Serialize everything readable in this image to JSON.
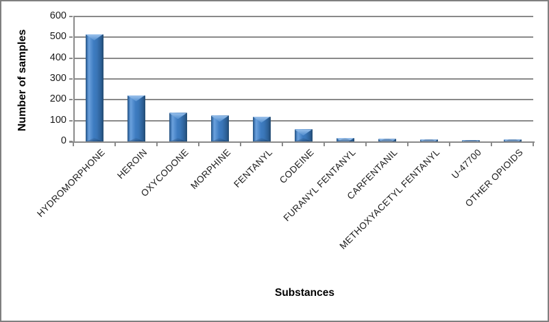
{
  "frame": {
    "background": "#ffffff",
    "border_color": "#7f7f7f"
  },
  "chart_data": {
    "type": "bar",
    "title": "",
    "ylabel": "Number of samples",
    "xlabel": "Substances",
    "categories": [
      "HYDROMORPHONE",
      "HEROIN",
      "OXYCODONE",
      "MORPHINE",
      "FENTANYL",
      "CODEINE",
      "FURANYL FENTANYL",
      "CARFENTANIL",
      "METHOXYACETYL FENTANYL",
      "U-47700",
      "OTHER OPIOIDS"
    ],
    "values": [
      515,
      222,
      137,
      124,
      120,
      58,
      17,
      12,
      9,
      5,
      9
    ],
    "ylim": [
      0,
      600
    ],
    "yticks": [
      0,
      100,
      200,
      300,
      400,
      500,
      600
    ],
    "grid": true,
    "legend_position": "none",
    "bar_color": "#3e7cc1",
    "bar_color_dark": "#27507b",
    "bar_color_light": "#9cc2ec",
    "gridline_color": "#898989",
    "axis_color": "#898989",
    "text_color": "#1a1a1a"
  }
}
